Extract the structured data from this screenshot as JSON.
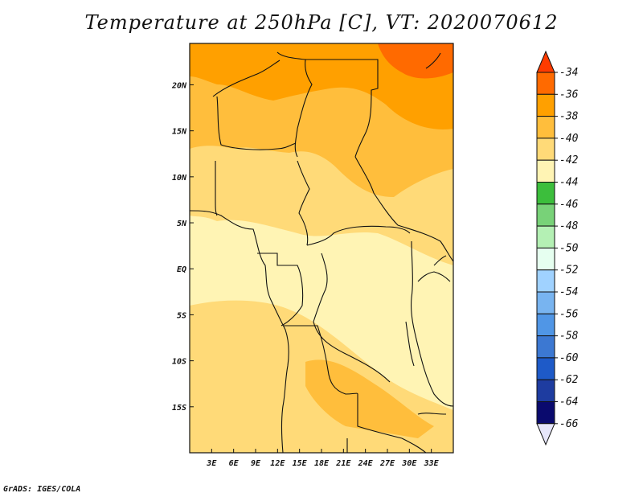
{
  "title": "Temperature at 250hPa [C], VT: 2020070612",
  "credit": "GrADS: IGES/COLA",
  "map": {
    "lon_range": [
      0,
      36
    ],
    "lat_range": [
      -20,
      24.5
    ],
    "x_ticks": [
      {
        "value": 3,
        "label": "3E"
      },
      {
        "value": 6,
        "label": "6E"
      },
      {
        "value": 9,
        "label": "9E"
      },
      {
        "value": 12,
        "label": "12E"
      },
      {
        "value": 15,
        "label": "15E"
      },
      {
        "value": 18,
        "label": "18E"
      },
      {
        "value": 21,
        "label": "21E"
      },
      {
        "value": 24,
        "label": "24E"
      },
      {
        "value": 27,
        "label": "27E"
      },
      {
        "value": 30,
        "label": "30E"
      },
      {
        "value": 33,
        "label": "33E"
      }
    ],
    "y_ticks": [
      {
        "value": 20,
        "label": "20N"
      },
      {
        "value": 15,
        "label": "15N"
      },
      {
        "value": 10,
        "label": "10N"
      },
      {
        "value": 5,
        "label": "5N"
      },
      {
        "value": 0,
        "label": "EQ"
      },
      {
        "value": -5,
        "label": "5S"
      },
      {
        "value": -10,
        "label": "10S"
      },
      {
        "value": -15,
        "label": "15S"
      }
    ]
  },
  "colorbar": {
    "levels": [
      "-34",
      "-36",
      "-38",
      "-40",
      "-42",
      "-44",
      "-46",
      "-48",
      "-50",
      "-52",
      "-54",
      "-56",
      "-58",
      "-60",
      "-62",
      "-64",
      "-66"
    ],
    "colors": [
      "#ff3b00",
      "#ff6a00",
      "#ffa000",
      "#ffbe3c",
      "#ffda78",
      "#fff4b4",
      "#3cbe3c",
      "#78d278",
      "#b4f0b4",
      "#e6fff0",
      "#a0d2ff",
      "#78b4f0",
      "#5096e6",
      "#3c78d2",
      "#1e5ac8",
      "#1e3ca0",
      "#0a0a6e",
      "#e6e6fa"
    ]
  }
}
